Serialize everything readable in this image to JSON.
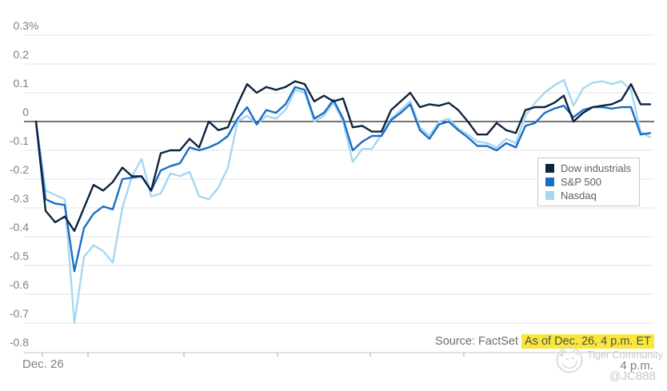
{
  "chart_data": {
    "type": "line",
    "title": "",
    "x_axis": {
      "start_label": "Dec. 26",
      "end_label": "4 p.m."
    },
    "y_axis": {
      "unit": "percent",
      "tick_values": [
        0.3,
        0.2,
        0.1,
        0,
        -0.1,
        -0.2,
        -0.3,
        -0.4,
        -0.5,
        -0.6,
        -0.7,
        -0.8
      ],
      "tick_labels": [
        "0.3%",
        "0.2",
        "0.1",
        "0",
        "-0.1",
        "-0.2",
        "-0.3",
        "-0.4",
        "-0.5",
        "-0.6",
        "-0.7",
        "-0.8"
      ]
    },
    "ylim": [
      -0.8,
      0.3
    ],
    "grid": true,
    "zero_line": 0,
    "legend_position": "middle-right",
    "series": [
      {
        "name": "Nasdaq",
        "color": "#a4d8f2",
        "values": [
          0,
          -0.24,
          -0.255,
          -0.27,
          -0.7,
          -0.47,
          -0.43,
          -0.45,
          -0.49,
          -0.3,
          -0.19,
          -0.13,
          -0.26,
          -0.25,
          -0.18,
          -0.19,
          -0.175,
          -0.26,
          -0.27,
          -0.23,
          -0.16,
          0,
          0.02,
          -0.01,
          0.02,
          0.01,
          0.04,
          0.11,
          0.1,
          0,
          0.02,
          0.065,
          0,
          -0.14,
          -0.095,
          -0.095,
          -0.045,
          0.01,
          0.04,
          0.07,
          -0.02,
          -0.05,
          0,
          0.01,
          -0.025,
          -0.045,
          -0.07,
          -0.075,
          -0.09,
          -0.06,
          -0.075,
          0.02,
          0.065,
          0.1,
          0.125,
          0.145,
          0.055,
          0.115,
          0.135,
          0.14,
          0.13,
          0.14,
          0.11,
          -0.035,
          -0.055
        ]
      },
      {
        "name": "S&P 500",
        "color": "#1c6dc6",
        "values": [
          0,
          -0.27,
          -0.285,
          -0.29,
          -0.52,
          -0.37,
          -0.32,
          -0.295,
          -0.305,
          -0.2,
          -0.195,
          -0.19,
          -0.24,
          -0.17,
          -0.155,
          -0.145,
          -0.09,
          -0.1,
          -0.09,
          -0.075,
          -0.05,
          0.01,
          0.05,
          -0.01,
          0.04,
          0.03,
          0.06,
          0.12,
          0.11,
          0.01,
          0.03,
          0.075,
          0.01,
          -0.1,
          -0.07,
          -0.05,
          -0.05,
          0.005,
          0.03,
          0.06,
          -0.03,
          -0.06,
          -0.01,
          0,
          -0.03,
          -0.055,
          -0.085,
          -0.085,
          -0.1,
          -0.075,
          -0.09,
          -0.015,
          -0.005,
          0.03,
          0.045,
          0.055,
          0.015,
          0.04,
          0.05,
          0.05,
          0.045,
          0.05,
          0.05,
          -0.045,
          -0.04
        ]
      },
      {
        "name": "Dow industrials",
        "color": "#0c2340",
        "values": [
          0,
          -0.31,
          -0.35,
          -0.33,
          -0.38,
          -0.3,
          -0.22,
          -0.24,
          -0.21,
          -0.16,
          -0.19,
          -0.19,
          -0.24,
          -0.11,
          -0.1,
          -0.1,
          -0.06,
          -0.09,
          0,
          -0.03,
          -0.02,
          0.06,
          0.13,
          0.1,
          0.12,
          0.11,
          0.12,
          0.14,
          0.13,
          0.07,
          0.09,
          0.07,
          0.08,
          -0.02,
          -0.015,
          -0.035,
          -0.035,
          0.04,
          0.07,
          0.1,
          0.05,
          0.06,
          0.055,
          0.065,
          0.04,
          0,
          -0.045,
          -0.045,
          -0.005,
          -0.03,
          -0.04,
          0.04,
          0.05,
          0.05,
          0.065,
          0.09,
          0,
          0.03,
          0.05,
          0.055,
          0.06,
          0.075,
          0.13,
          0.06,
          0.06
        ]
      }
    ],
    "legend_order": [
      "Dow industrials",
      "S&P 500",
      "Nasdaq"
    ]
  },
  "footer": {
    "source_label": "Source: FactSet",
    "asof_label": "As of Dec. 26, 4 p.m. ET",
    "highlight_color": "#f8e73a"
  },
  "watermark": {
    "community_label": "Tiger Community",
    "user_label": "@JC888",
    "logo": "tiger-logo-icon"
  }
}
